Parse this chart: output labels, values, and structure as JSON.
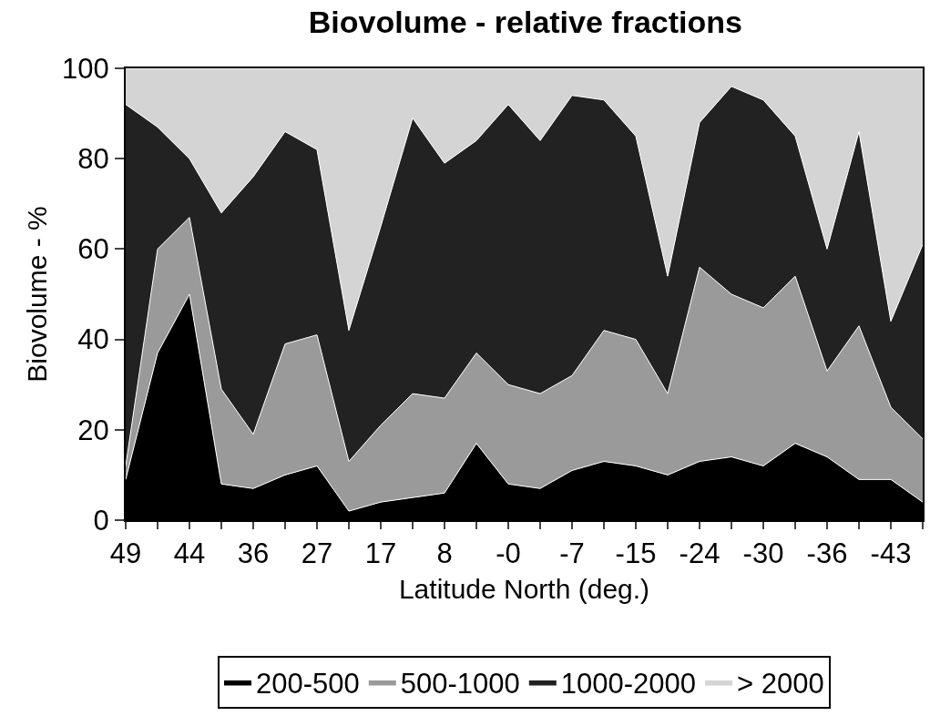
{
  "chart_data": {
    "type": "area",
    "title": "Biovolume - relative fractions",
    "xlabel": "Latitude North (deg.)",
    "ylabel": "Biovolume - %",
    "categories": [
      "49",
      null,
      "44",
      null,
      "36",
      null,
      "27",
      null,
      "17",
      null,
      "8",
      null,
      "-0",
      null,
      "-7",
      null,
      "-15",
      null,
      "-24",
      null,
      "-30",
      null,
      "-36",
      null,
      "-43",
      null
    ],
    "stacked": true,
    "ylim": [
      0,
      100
    ],
    "yticks": [
      0,
      20,
      40,
      60,
      80,
      100
    ],
    "grid": false,
    "legend": "bottom",
    "series": [
      {
        "name": "200-500",
        "color": "#000000",
        "values": [
          9,
          37,
          50,
          8,
          7,
          10,
          12,
          2,
          4,
          5,
          6,
          17,
          8,
          7,
          11,
          13,
          12,
          10,
          13,
          14,
          12,
          17,
          14,
          9,
          9,
          4
        ]
      },
      {
        "name": "500-1000",
        "color": "#9a9a9a",
        "values": [
          3,
          23,
          17,
          21,
          12,
          29,
          29,
          11,
          17,
          23,
          21,
          20,
          22,
          21,
          21,
          29,
          28,
          18,
          43,
          36,
          35,
          37,
          19,
          34,
          16,
          14
        ]
      },
      {
        "name": "1000-2000",
        "color": "#222222",
        "values": [
          80,
          27,
          13,
          39,
          57,
          47,
          41,
          29,
          44,
          61,
          52,
          47,
          62,
          56,
          62,
          51,
          45,
          26,
          32,
          46,
          46,
          31,
          27,
          43,
          19,
          43
        ]
      },
      {
        "name": "> 2000",
        "color": "#d4d4d4",
        "values": [
          8,
          13,
          20,
          32,
          24,
          14,
          18,
          58,
          35,
          11,
          21,
          16,
          8,
          16,
          6,
          7,
          15,
          46,
          12,
          4,
          7,
          15,
          40,
          14,
          56,
          39
        ]
      }
    ]
  }
}
